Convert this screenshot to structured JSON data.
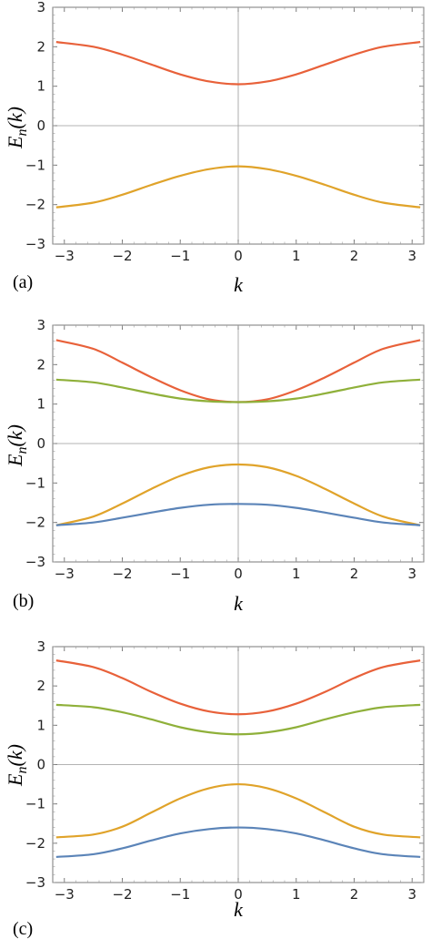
{
  "figure": {
    "panels": [
      {
        "label": "(a)",
        "xlabel": "k",
        "ylabel": "E_n(k)"
      },
      {
        "label": "(b)",
        "xlabel": "k",
        "ylabel": "E_n(k)"
      },
      {
        "label": "(c)",
        "xlabel": "k",
        "ylabel": "E_n(k)"
      }
    ]
  },
  "chart_data": [
    {
      "type": "line",
      "panel_label": "(a)",
      "title": "",
      "xlabel": "k",
      "ylabel": "E_n(k)",
      "xlim": [
        -3.2,
        3.2
      ],
      "ylim": [
        -3,
        3
      ],
      "xticks": [
        -3,
        -2,
        -1,
        0,
        1,
        2,
        3
      ],
      "yticks": [
        -3,
        -2,
        -1,
        0,
        1,
        2,
        3
      ],
      "grid": false,
      "zero_lines": true,
      "x": [
        -3.14,
        -2.5,
        -2.0,
        -1.5,
        -1.0,
        -0.5,
        0.0,
        0.5,
        1.0,
        1.5,
        2.0,
        2.5,
        3.14
      ],
      "series": [
        {
          "color": "#e8613a",
          "values": [
            2.12,
            2.0,
            1.8,
            1.55,
            1.3,
            1.12,
            1.05,
            1.12,
            1.3,
            1.55,
            1.8,
            2.0,
            2.12
          ]
        },
        {
          "color": "#e0a32a",
          "values": [
            -2.07,
            -1.95,
            -1.75,
            -1.5,
            -1.27,
            -1.1,
            -1.03,
            -1.1,
            -1.27,
            -1.5,
            -1.75,
            -1.95,
            -2.07
          ]
        }
      ]
    },
    {
      "type": "line",
      "panel_label": "(b)",
      "title": "",
      "xlabel": "k",
      "ylabel": "E_n(k)",
      "xlim": [
        -3.2,
        3.2
      ],
      "ylim": [
        -3,
        3
      ],
      "xticks": [
        -3,
        -2,
        -1,
        0,
        1,
        2,
        3
      ],
      "yticks": [
        -3,
        -2,
        -1,
        0,
        1,
        2,
        3
      ],
      "grid": false,
      "zero_lines": true,
      "x": [
        -3.14,
        -2.5,
        -2.0,
        -1.5,
        -1.0,
        -0.5,
        0.0,
        0.5,
        1.0,
        1.5,
        2.0,
        2.5,
        3.14
      ],
      "series": [
        {
          "color": "#e8613a",
          "values": [
            2.62,
            2.4,
            2.05,
            1.68,
            1.35,
            1.12,
            1.05,
            1.12,
            1.35,
            1.68,
            2.05,
            2.4,
            2.62
          ]
        },
        {
          "color": "#8fb03a",
          "values": [
            1.62,
            1.55,
            1.42,
            1.27,
            1.14,
            1.07,
            1.05,
            1.07,
            1.14,
            1.27,
            1.42,
            1.55,
            1.62
          ]
        },
        {
          "color": "#e0a32a",
          "values": [
            -2.07,
            -1.85,
            -1.52,
            -1.15,
            -0.82,
            -0.6,
            -0.53,
            -0.6,
            -0.82,
            -1.15,
            -1.52,
            -1.85,
            -2.07
          ]
        },
        {
          "color": "#5b84b8",
          "values": [
            -2.07,
            -2.0,
            -1.88,
            -1.75,
            -1.63,
            -1.55,
            -1.53,
            -1.55,
            -1.63,
            -1.75,
            -1.88,
            -2.0,
            -2.07
          ]
        }
      ]
    },
    {
      "type": "line",
      "panel_label": "(c)",
      "title": "",
      "xlabel": "k",
      "ylabel": "E_n(k)",
      "xlim": [
        -3.2,
        3.2
      ],
      "ylim": [
        -3,
        3
      ],
      "xticks": [
        -3,
        -2,
        -1,
        0,
        1,
        2,
        3
      ],
      "yticks": [
        -3,
        -2,
        -1,
        0,
        1,
        2,
        3
      ],
      "grid": false,
      "zero_lines": true,
      "x": [
        -3.14,
        -2.5,
        -2.0,
        -1.5,
        -1.0,
        -0.5,
        0.0,
        0.5,
        1.0,
        1.5,
        2.0,
        2.5,
        3.14
      ],
      "series": [
        {
          "color": "#e8613a",
          "values": [
            2.65,
            2.48,
            2.2,
            1.85,
            1.55,
            1.35,
            1.28,
            1.35,
            1.55,
            1.85,
            2.2,
            2.48,
            2.65
          ]
        },
        {
          "color": "#8fb03a",
          "values": [
            1.52,
            1.46,
            1.33,
            1.15,
            0.95,
            0.82,
            0.77,
            0.82,
            0.95,
            1.15,
            1.33,
            1.46,
            1.52
          ]
        },
        {
          "color": "#e0a32a",
          "values": [
            -1.85,
            -1.78,
            -1.58,
            -1.22,
            -0.86,
            -0.6,
            -0.5,
            -0.6,
            -0.86,
            -1.22,
            -1.58,
            -1.78,
            -1.85
          ]
        },
        {
          "color": "#5b84b8",
          "values": [
            -2.35,
            -2.28,
            -2.13,
            -1.93,
            -1.75,
            -1.64,
            -1.6,
            -1.64,
            -1.75,
            -1.93,
            -2.13,
            -2.28,
            -2.35
          ]
        }
      ]
    }
  ]
}
